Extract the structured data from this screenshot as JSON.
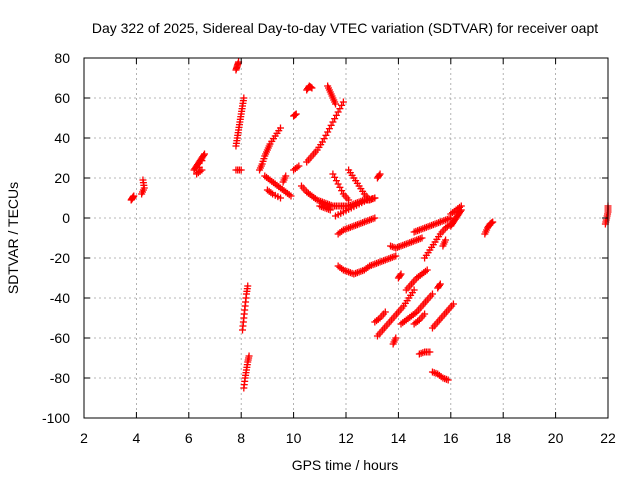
{
  "chart_data": {
    "type": "scatter",
    "title": "Day 322 of 2025, Sidereal Day-to-day VTEC variation (SDTVAR) for receiver oapt",
    "xlabel": "GPS time / hours",
    "ylabel": "SDTVAR / TECUs",
    "xlim": [
      2,
      22
    ],
    "ylim": [
      -100,
      80
    ],
    "xticks": [
      2,
      4,
      6,
      8,
      10,
      12,
      14,
      16,
      18,
      20,
      22
    ],
    "yticks": [
      -100,
      -80,
      -60,
      -40,
      -20,
      0,
      20,
      40,
      60,
      80
    ],
    "xtick_labels": [
      "2",
      "4",
      "6",
      "8",
      "10",
      "12",
      "14",
      "16",
      "18",
      "20",
      "22"
    ],
    "ytick_labels": [
      "-100",
      "-80",
      "-60",
      "-40",
      "-20",
      "0",
      "20",
      "40",
      "60",
      "80"
    ],
    "grid": true,
    "marker": "+",
    "color": "#ff0000",
    "series": [
      {
        "name": "SDTVAR",
        "segments": [
          [
            [
              3.8,
              9
            ],
            [
              3.85,
              10
            ],
            [
              3.9,
              11
            ]
          ],
          [
            [
              4.2,
              12
            ],
            [
              4.3,
              15
            ],
            [
              4.25,
              19
            ]
          ],
          [
            [
              6.2,
              24
            ],
            [
              6.3,
              26
            ],
            [
              6.4,
              28
            ],
            [
              6.5,
              30
            ],
            [
              6.6,
              32
            ],
            [
              6.3,
              22
            ],
            [
              6.5,
              24
            ]
          ],
          [
            [
              7.8,
              24
            ],
            [
              8.0,
              24
            ]
          ],
          [
            [
              7.8,
              36
            ],
            [
              7.85,
              40
            ],
            [
              7.9,
              44
            ],
            [
              7.95,
              48
            ],
            [
              8.0,
              52
            ],
            [
              8.05,
              56
            ],
            [
              8.1,
              60
            ]
          ],
          [
            [
              7.8,
              74
            ],
            [
              7.85,
              76
            ],
            [
              7.9,
              78
            ]
          ],
          [
            [
              8.05,
              -56
            ],
            [
              8.1,
              -50
            ],
            [
              8.15,
              -44
            ],
            [
              8.2,
              -38
            ],
            [
              8.25,
              -34
            ]
          ],
          [
            [
              8.1,
              -85
            ],
            [
              8.15,
              -80
            ],
            [
              8.2,
              -76
            ],
            [
              8.25,
              -72
            ],
            [
              8.3,
              -69
            ]
          ],
          [
            [
              8.7,
              24
            ],
            [
              8.8,
              27
            ],
            [
              8.9,
              31
            ],
            [
              9.0,
              34
            ],
            [
              9.1,
              37
            ],
            [
              9.3,
              41
            ],
            [
              9.5,
              45
            ]
          ],
          [
            [
              8.9,
              21
            ],
            [
              9.1,
              19
            ],
            [
              9.3,
              17
            ],
            [
              9.5,
              15
            ],
            [
              9.7,
              13
            ],
            [
              9.9,
              11
            ]
          ],
          [
            [
              9.0,
              14
            ],
            [
              9.2,
              12
            ],
            [
              9.5,
              10
            ]
          ],
          [
            [
              9.6,
              18
            ],
            [
              9.7,
              21
            ]
          ],
          [
            [
              10.0,
              24
            ],
            [
              10.2,
              26
            ]
          ],
          [
            [
              10.0,
              51
            ],
            [
              10.1,
              52
            ]
          ],
          [
            [
              10.5,
              64
            ],
            [
              10.6,
              66
            ],
            [
              10.7,
              65
            ]
          ],
          [
            [
              10.5,
              28
            ],
            [
              10.7,
              31
            ],
            [
              10.9,
              34
            ],
            [
              11.1,
              38
            ],
            [
              11.3,
              43
            ],
            [
              11.5,
              48
            ],
            [
              11.7,
              53
            ],
            [
              11.9,
              58
            ]
          ],
          [
            [
              11.3,
              66
            ],
            [
              11.4,
              63
            ],
            [
              11.5,
              60
            ],
            [
              11.6,
              57
            ]
          ],
          [
            [
              10.3,
              16
            ],
            [
              10.5,
              13
            ],
            [
              10.7,
              11
            ],
            [
              10.9,
              9
            ],
            [
              11.1,
              8
            ],
            [
              11.3,
              7
            ],
            [
              11.5,
              6
            ],
            [
              11.7,
              6
            ],
            [
              11.9,
              6
            ],
            [
              12.1,
              6
            ],
            [
              12.3,
              7
            ],
            [
              12.5,
              8
            ],
            [
              12.7,
              9
            ],
            [
              12.9,
              9
            ],
            [
              13.1,
              10
            ]
          ],
          [
            [
              11.0,
              6
            ],
            [
              11.2,
              5
            ],
            [
              11.4,
              4
            ]
          ],
          [
            [
              11.7,
              -8
            ],
            [
              11.9,
              -6
            ],
            [
              12.1,
              -5
            ],
            [
              12.3,
              -4
            ],
            [
              12.5,
              -3
            ],
            [
              12.7,
              -2
            ],
            [
              12.9,
              -1
            ],
            [
              13.1,
              0
            ]
          ],
          [
            [
              11.6,
              1
            ],
            [
              11.9,
              3
            ],
            [
              12.2,
              5
            ],
            [
              12.5,
              7
            ],
            [
              12.8,
              9
            ],
            [
              13.1,
              10
            ]
          ],
          [
            [
              12.1,
              24
            ],
            [
              12.3,
              20
            ],
            [
              12.5,
              16
            ],
            [
              12.7,
              12
            ],
            [
              12.9,
              9
            ]
          ],
          [
            [
              11.5,
              22
            ],
            [
              11.7,
              17
            ],
            [
              11.9,
              12
            ],
            [
              12.1,
              9
            ]
          ],
          [
            [
              13.2,
              20
            ],
            [
              13.3,
              22
            ]
          ],
          [
            [
              11.7,
              -24
            ],
            [
              11.9,
              -26
            ],
            [
              12.1,
              -27
            ],
            [
              12.3,
              -28
            ],
            [
              12.5,
              -27
            ],
            [
              12.7,
              -26
            ],
            [
              12.9,
              -24
            ],
            [
              13.1,
              -23
            ],
            [
              13.3,
              -22
            ],
            [
              13.5,
              -21
            ],
            [
              13.7,
              -20
            ],
            [
              13.9,
              -19
            ]
          ],
          [
            [
              13.7,
              -14
            ],
            [
              13.9,
              -15
            ],
            [
              14.1,
              -14
            ],
            [
              14.3,
              -13
            ],
            [
              14.5,
              -12
            ],
            [
              14.7,
              -11
            ],
            [
              14.9,
              -10
            ]
          ],
          [
            [
              13.2,
              -59
            ],
            [
              13.4,
              -56
            ],
            [
              13.6,
              -53
            ],
            [
              13.8,
              -50
            ],
            [
              14.0,
              -47
            ],
            [
              14.2,
              -44
            ],
            [
              14.4,
              -40
            ],
            [
              14.6,
              -36
            ]
          ],
          [
            [
              13.1,
              -52
            ],
            [
              13.3,
              -50
            ],
            [
              13.5,
              -47
            ]
          ],
          [
            [
              13.8,
              -63
            ],
            [
              13.9,
              -60
            ]
          ],
          [
            [
              14.0,
              -30
            ],
            [
              14.1,
              -28
            ]
          ],
          [
            [
              14.3,
              -36
            ],
            [
              14.5,
              -33
            ],
            [
              14.7,
              -30
            ],
            [
              14.9,
              -28
            ],
            [
              15.1,
              -26
            ]
          ],
          [
            [
              14.1,
              -53
            ],
            [
              14.3,
              -51
            ],
            [
              14.5,
              -49
            ],
            [
              14.7,
              -47
            ],
            [
              14.9,
              -44
            ],
            [
              15.1,
              -41
            ],
            [
              15.3,
              -38
            ]
          ],
          [
            [
              14.6,
              -53
            ],
            [
              14.8,
              -51
            ],
            [
              15.0,
              -48
            ]
          ],
          [
            [
              14.6,
              -7
            ],
            [
              14.8,
              -6
            ],
            [
              15.0,
              -5
            ],
            [
              15.2,
              -4
            ],
            [
              15.4,
              -3
            ],
            [
              15.6,
              -2
            ],
            [
              15.8,
              -1
            ],
            [
              16.0,
              0
            ]
          ],
          [
            [
              15.0,
              -20
            ],
            [
              15.2,
              -16
            ],
            [
              15.4,
              -12
            ],
            [
              15.6,
              -8
            ],
            [
              15.8,
              -5
            ],
            [
              16.0,
              -3
            ]
          ],
          [
            [
              15.3,
              -55
            ],
            [
              15.5,
              -52
            ],
            [
              15.7,
              -49
            ],
            [
              15.9,
              -46
            ],
            [
              16.1,
              -43
            ]
          ],
          [
            [
              15.5,
              -35
            ],
            [
              15.6,
              -33
            ]
          ],
          [
            [
              15.7,
              -14
            ],
            [
              15.8,
              -11
            ]
          ],
          [
            [
              14.8,
              -68
            ],
            [
              15.0,
              -67
            ],
            [
              15.2,
              -67
            ]
          ],
          [
            [
              15.3,
              -77
            ],
            [
              15.5,
              -78
            ],
            [
              15.7,
              -80
            ],
            [
              15.9,
              -81
            ]
          ],
          [
            [
              16.0,
              -4
            ],
            [
              16.1,
              -2
            ],
            [
              16.2,
              0
            ],
            [
              16.3,
              2
            ],
            [
              16.4,
              4
            ]
          ],
          [
            [
              16.0,
              2
            ],
            [
              16.2,
              4
            ],
            [
              16.4,
              6
            ]
          ],
          [
            [
              17.3,
              -8
            ],
            [
              17.4,
              -5
            ],
            [
              17.5,
              -3
            ],
            [
              17.6,
              -2
            ]
          ],
          [
            [
              21.9,
              -3
            ],
            [
              21.95,
              0
            ],
            [
              22.0,
              3
            ],
            [
              22.0,
              6
            ]
          ]
        ]
      }
    ]
  }
}
